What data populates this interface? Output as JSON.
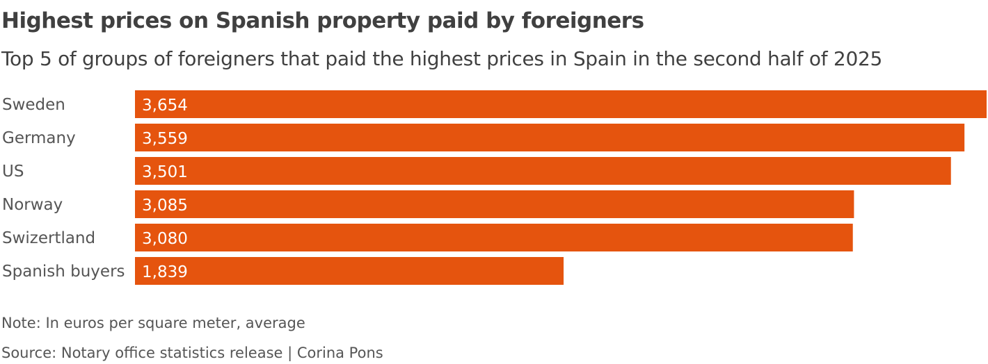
{
  "chart_data": {
    "type": "bar",
    "orientation": "horizontal",
    "title": "Highest prices on Spanish property paid by foreigners",
    "subtitle": "Top 5 of groups of foreigners that paid the highest prices in Spain in the second half of 2025",
    "categories": [
      "Sweden",
      "Germany",
      "US",
      "Norway",
      "Swizertland",
      "Spanish buyers"
    ],
    "values": [
      3654,
      3559,
      3501,
      3085,
      3080,
      1839
    ],
    "value_labels": [
      "3,654",
      "3,559",
      "3,501",
      "3,085",
      "3,080",
      "1,839"
    ],
    "xlim": [
      0,
      3654
    ],
    "grid": false,
    "bar_color": "#e5540e",
    "note": "Note: In euros per square meter, average",
    "source": "Source: Notary office statistics release | Corina Pons"
  }
}
